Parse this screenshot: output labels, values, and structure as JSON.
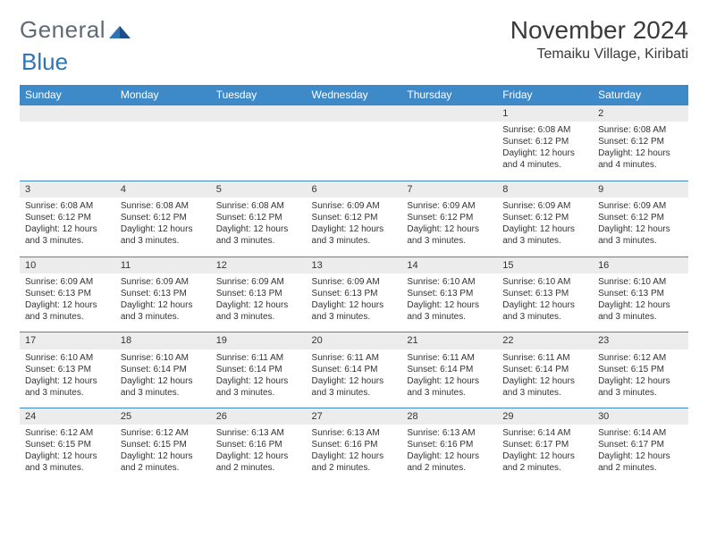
{
  "logo": {
    "word1": "General",
    "word2": "Blue"
  },
  "title": {
    "month": "November 2024",
    "location": "Temaiku Village, Kiribati"
  },
  "colors": {
    "header_bg": "#3e8ac9",
    "header_text": "#ffffff",
    "row_border": "#3e8ac9",
    "daynum_bg": "#ececec",
    "text": "#333333",
    "logo_gray": "#606a74",
    "logo_blue": "#2e75b6",
    "page_bg": "#ffffff"
  },
  "weekdays": [
    "Sunday",
    "Monday",
    "Tuesday",
    "Wednesday",
    "Thursday",
    "Friday",
    "Saturday"
  ],
  "weeks": [
    [
      null,
      null,
      null,
      null,
      null,
      {
        "day": "1",
        "sunrise": "6:08 AM",
        "sunset": "6:12 PM",
        "daylight": "12 hours and 4 minutes."
      },
      {
        "day": "2",
        "sunrise": "6:08 AM",
        "sunset": "6:12 PM",
        "daylight": "12 hours and 4 minutes."
      }
    ],
    [
      {
        "day": "3",
        "sunrise": "6:08 AM",
        "sunset": "6:12 PM",
        "daylight": "12 hours and 3 minutes."
      },
      {
        "day": "4",
        "sunrise": "6:08 AM",
        "sunset": "6:12 PM",
        "daylight": "12 hours and 3 minutes."
      },
      {
        "day": "5",
        "sunrise": "6:08 AM",
        "sunset": "6:12 PM",
        "daylight": "12 hours and 3 minutes."
      },
      {
        "day": "6",
        "sunrise": "6:09 AM",
        "sunset": "6:12 PM",
        "daylight": "12 hours and 3 minutes."
      },
      {
        "day": "7",
        "sunrise": "6:09 AM",
        "sunset": "6:12 PM",
        "daylight": "12 hours and 3 minutes."
      },
      {
        "day": "8",
        "sunrise": "6:09 AM",
        "sunset": "6:12 PM",
        "daylight": "12 hours and 3 minutes."
      },
      {
        "day": "9",
        "sunrise": "6:09 AM",
        "sunset": "6:12 PM",
        "daylight": "12 hours and 3 minutes."
      }
    ],
    [
      {
        "day": "10",
        "sunrise": "6:09 AM",
        "sunset": "6:13 PM",
        "daylight": "12 hours and 3 minutes."
      },
      {
        "day": "11",
        "sunrise": "6:09 AM",
        "sunset": "6:13 PM",
        "daylight": "12 hours and 3 minutes."
      },
      {
        "day": "12",
        "sunrise": "6:09 AM",
        "sunset": "6:13 PM",
        "daylight": "12 hours and 3 minutes."
      },
      {
        "day": "13",
        "sunrise": "6:09 AM",
        "sunset": "6:13 PM",
        "daylight": "12 hours and 3 minutes."
      },
      {
        "day": "14",
        "sunrise": "6:10 AM",
        "sunset": "6:13 PM",
        "daylight": "12 hours and 3 minutes."
      },
      {
        "day": "15",
        "sunrise": "6:10 AM",
        "sunset": "6:13 PM",
        "daylight": "12 hours and 3 minutes."
      },
      {
        "day": "16",
        "sunrise": "6:10 AM",
        "sunset": "6:13 PM",
        "daylight": "12 hours and 3 minutes."
      }
    ],
    [
      {
        "day": "17",
        "sunrise": "6:10 AM",
        "sunset": "6:13 PM",
        "daylight": "12 hours and 3 minutes."
      },
      {
        "day": "18",
        "sunrise": "6:10 AM",
        "sunset": "6:14 PM",
        "daylight": "12 hours and 3 minutes."
      },
      {
        "day": "19",
        "sunrise": "6:11 AM",
        "sunset": "6:14 PM",
        "daylight": "12 hours and 3 minutes."
      },
      {
        "day": "20",
        "sunrise": "6:11 AM",
        "sunset": "6:14 PM",
        "daylight": "12 hours and 3 minutes."
      },
      {
        "day": "21",
        "sunrise": "6:11 AM",
        "sunset": "6:14 PM",
        "daylight": "12 hours and 3 minutes."
      },
      {
        "day": "22",
        "sunrise": "6:11 AM",
        "sunset": "6:14 PM",
        "daylight": "12 hours and 3 minutes."
      },
      {
        "day": "23",
        "sunrise": "6:12 AM",
        "sunset": "6:15 PM",
        "daylight": "12 hours and 3 minutes."
      }
    ],
    [
      {
        "day": "24",
        "sunrise": "6:12 AM",
        "sunset": "6:15 PM",
        "daylight": "12 hours and 3 minutes."
      },
      {
        "day": "25",
        "sunrise": "6:12 AM",
        "sunset": "6:15 PM",
        "daylight": "12 hours and 2 minutes."
      },
      {
        "day": "26",
        "sunrise": "6:13 AM",
        "sunset": "6:16 PM",
        "daylight": "12 hours and 2 minutes."
      },
      {
        "day": "27",
        "sunrise": "6:13 AM",
        "sunset": "6:16 PM",
        "daylight": "12 hours and 2 minutes."
      },
      {
        "day": "28",
        "sunrise": "6:13 AM",
        "sunset": "6:16 PM",
        "daylight": "12 hours and 2 minutes."
      },
      {
        "day": "29",
        "sunrise": "6:14 AM",
        "sunset": "6:17 PM",
        "daylight": "12 hours and 2 minutes."
      },
      {
        "day": "30",
        "sunrise": "6:14 AM",
        "sunset": "6:17 PM",
        "daylight": "12 hours and 2 minutes."
      }
    ]
  ],
  "labels": {
    "sunrise": "Sunrise: ",
    "sunset": "Sunset: ",
    "daylight": "Daylight: "
  }
}
